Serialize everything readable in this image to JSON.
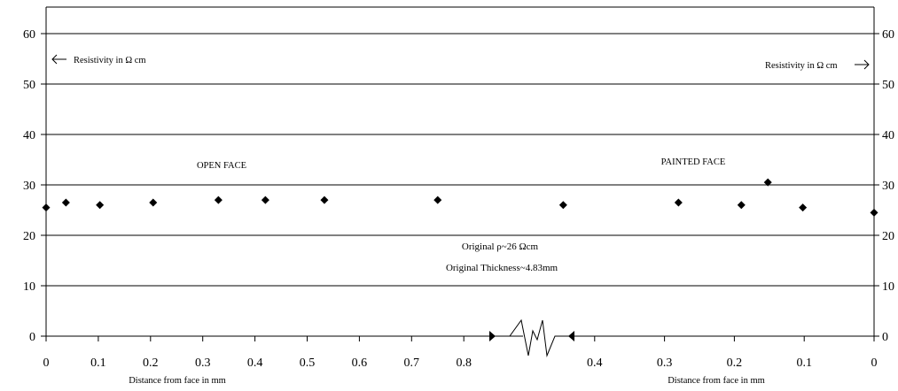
{
  "chart_data": {
    "type": "scatter",
    "title": "",
    "ylim": [
      0,
      60
    ],
    "yticks": [
      0,
      10,
      20,
      30,
      40,
      50,
      60
    ],
    "grid": true,
    "left_panel": {
      "label": "OPEN FACE",
      "xlabel": "Distance from face in mm",
      "xlim": [
        0,
        0.8
      ],
      "xticks": [
        "0",
        "0.1",
        "0.2",
        "0.3",
        "0.4",
        "0.5",
        "0.6",
        "0.7",
        "0.8"
      ],
      "y_axis_note": "Resistivity in Ω cm",
      "points": [
        {
          "x": 0.0,
          "y": 25.5
        },
        {
          "x": 0.038,
          "y": 26.5
        },
        {
          "x": 0.103,
          "y": 26.0
        },
        {
          "x": 0.205,
          "y": 26.5
        },
        {
          "x": 0.33,
          "y": 27.0
        },
        {
          "x": 0.42,
          "y": 27.0
        },
        {
          "x": 0.533,
          "y": 27.0
        },
        {
          "x": 0.75,
          "y": 27.0
        }
      ]
    },
    "right_panel": {
      "label": "PAINTED FACE",
      "xlabel": "Distance from face in mm",
      "xlim": [
        0.4,
        0
      ],
      "xticks": [
        "0.4",
        "0.3",
        "0.2",
        "0.1",
        "0"
      ],
      "y_axis_note": "Resistivity in Ω cm",
      "points": [
        {
          "x": 0.445,
          "y": 26.0
        },
        {
          "x": 0.28,
          "y": 26.5
        },
        {
          "x": 0.19,
          "y": 26.0
        },
        {
          "x": 0.152,
          "y": 30.5
        },
        {
          "x": 0.102,
          "y": 25.5
        },
        {
          "x": 0.0,
          "y": 24.5
        }
      ]
    },
    "annotations": [
      "Original ρ~26  Ωcm",
      "Original Thickness~4.83mm"
    ]
  }
}
